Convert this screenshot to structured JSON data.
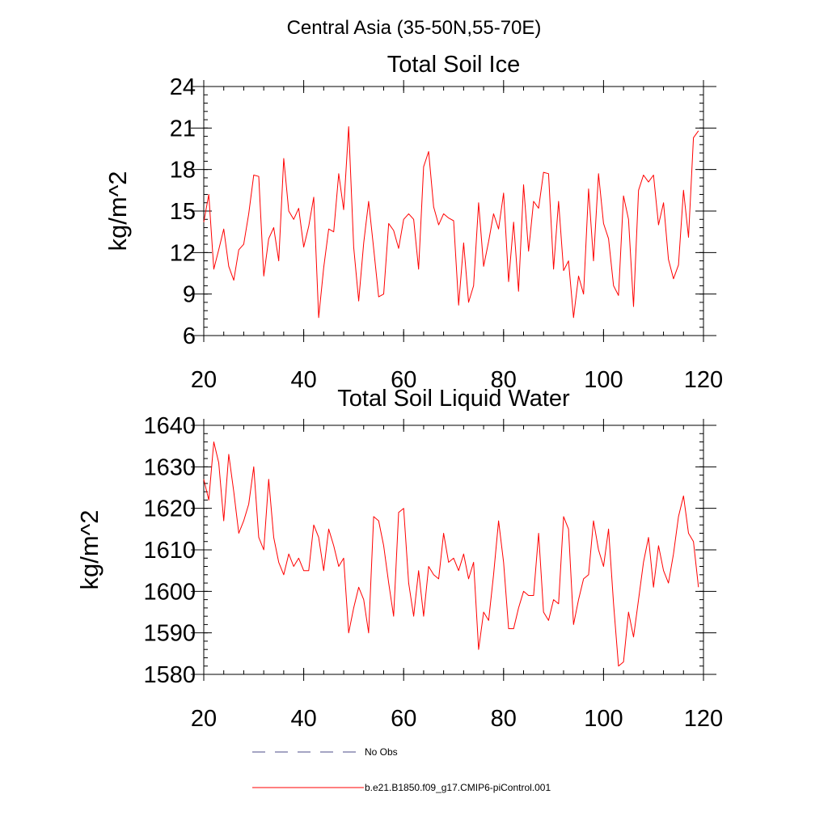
{
  "figure": {
    "title": "Central Asia (35-50N,55-70E)"
  },
  "chart_data": [
    {
      "type": "line",
      "title": "Total Soil Ice",
      "xlabel": "",
      "ylabel": "kg/m^2",
      "xlim": [
        20,
        120
      ],
      "ylim": [
        6,
        24
      ],
      "xticks": [
        20,
        40,
        60,
        80,
        100,
        120
      ],
      "yticks": [
        6,
        9,
        12,
        15,
        18,
        21,
        24
      ],
      "grid": false,
      "series": [
        {
          "name": "b.e21.B1850.f09_g17.CMIP6-piControl.001",
          "color": "#ff0000",
          "x_start": 20,
          "x_step": 1,
          "values": [
            14.2,
            16.2,
            10.8,
            12.2,
            13.7,
            11.0,
            10.0,
            12.2,
            12.6,
            14.8,
            17.6,
            17.5,
            10.3,
            13.0,
            13.8,
            11.4,
            18.8,
            15.0,
            14.4,
            15.2,
            12.4,
            13.9,
            16.0,
            7.3,
            10.9,
            13.7,
            13.5,
            17.7,
            15.1,
            21.1,
            12.4,
            8.5,
            12.7,
            15.7,
            12.3,
            8.8,
            9.0,
            14.1,
            13.6,
            12.3,
            14.4,
            14.8,
            14.4,
            10.8,
            18.2,
            19.3,
            15.3,
            14.0,
            14.8,
            14.5,
            14.3,
            8.2,
            12.7,
            8.4,
            9.6,
            15.6,
            11.0,
            12.8,
            14.8,
            13.7,
            16.3,
            9.9,
            14.2,
            9.2,
            16.9,
            12.1,
            15.7,
            15.2,
            17.8,
            17.7,
            10.8,
            15.7,
            10.7,
            11.4,
            7.3,
            10.3,
            9.0,
            16.6,
            11.4,
            17.7,
            14.1,
            13.0,
            9.6,
            8.9,
            16.1,
            14.4,
            8.1,
            16.5,
            17.6,
            17.1,
            17.6,
            14.0,
            15.6,
            11.5,
            10.1,
            11.1,
            16.5,
            13.1,
            20.3,
            20.8
          ]
        }
      ]
    },
    {
      "type": "line",
      "title": "Total Soil Liquid Water",
      "xlabel": "",
      "ylabel": "kg/m^2",
      "xlim": [
        20,
        120
      ],
      "ylim": [
        1580,
        1640
      ],
      "xticks": [
        20,
        40,
        60,
        80,
        100,
        120
      ],
      "yticks": [
        1580,
        1590,
        1600,
        1610,
        1620,
        1630,
        1640
      ],
      "grid": false,
      "series": [
        {
          "name": "b.e21.B1850.f09_g17.CMIP6-piControl.001",
          "color": "#ff0000",
          "x_start": 20,
          "x_step": 1,
          "values": [
            1627,
            1622,
            1636,
            1631,
            1617,
            1633,
            1624,
            1614,
            1617,
            1621,
            1630,
            1613,
            1610,
            1627,
            1613,
            1607,
            1604,
            1609,
            1606,
            1608,
            1605,
            1605,
            1616,
            1613,
            1605,
            1615,
            1611,
            1606,
            1608,
            1590,
            1596,
            1601,
            1598,
            1590,
            1618,
            1617,
            1611,
            1602,
            1594,
            1619,
            1620,
            1602,
            1594,
            1605,
            1594,
            1606,
            1604,
            1603,
            1614,
            1607,
            1608,
            1605,
            1609,
            1603,
            1607,
            1586,
            1595,
            1593,
            1604,
            1617,
            1607,
            1591,
            1591,
            1596,
            1600,
            1599,
            1599,
            1614,
            1595,
            1593,
            1598,
            1597,
            1618,
            1615,
            1592,
            1598,
            1603,
            1604,
            1617,
            1610,
            1606,
            1615,
            1597,
            1582,
            1583,
            1595,
            1589,
            1598,
            1607,
            1613,
            1601,
            1611,
            1605,
            1602,
            1609,
            1618,
            1623,
            1614,
            1612,
            1601
          ]
        }
      ]
    }
  ],
  "legend": {
    "placement": "bottom-left",
    "items": [
      {
        "label": "No Obs",
        "color": "#4b4b8a",
        "dashed": true
      },
      {
        "label": "b.e21.B1850.f09_g17.CMIP6-piControl.001",
        "color": "#ff0000",
        "dashed": false
      }
    ]
  }
}
